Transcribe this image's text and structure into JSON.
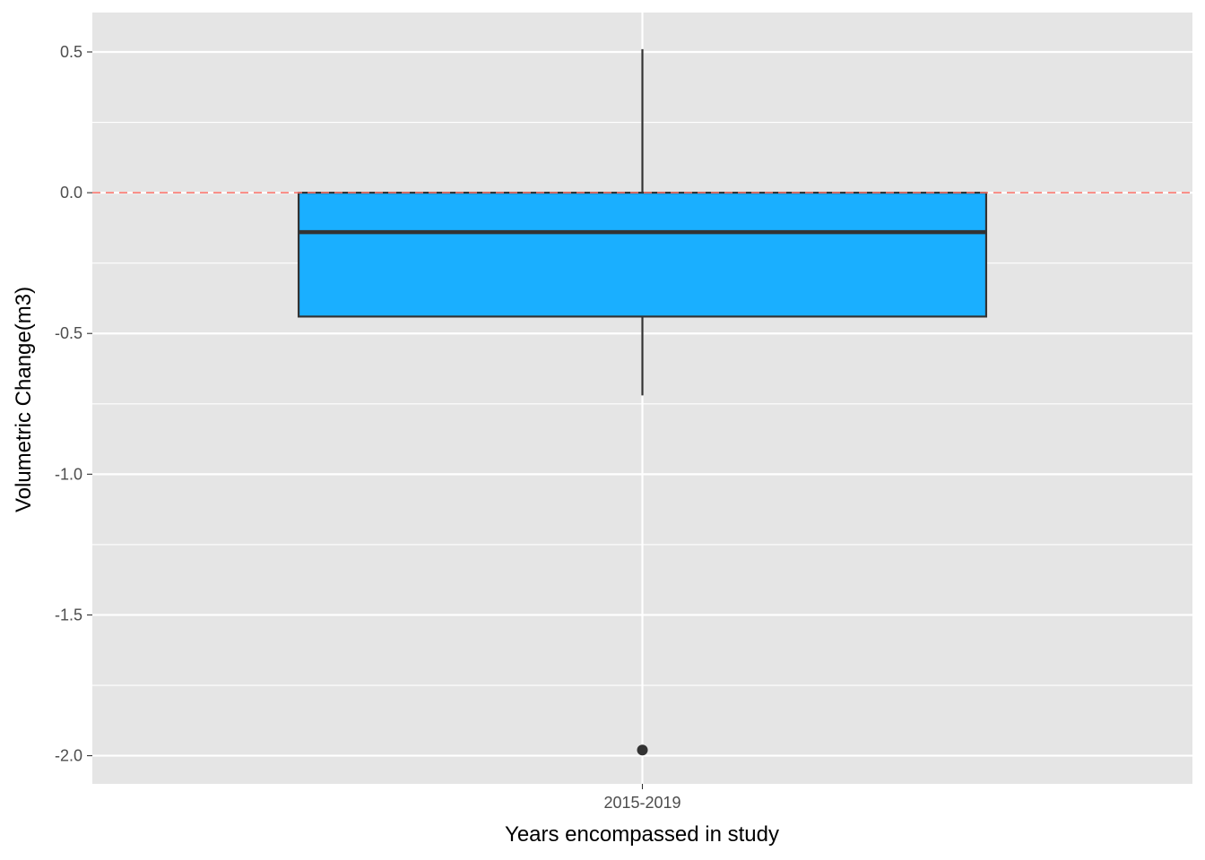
{
  "chart_data": {
    "type": "box",
    "xlabel": "Years encompassed in study",
    "ylabel": "Volumetric Change(m3)",
    "categories": [
      "2015-2019"
    ],
    "ylim": [
      -2.1,
      0.64
    ],
    "yticks": [
      0.5,
      0.0,
      -0.5,
      -1.0,
      -1.5,
      -2.0
    ],
    "ytick_labels": [
      "0.5",
      "0.0",
      "-0.5",
      "-1.0",
      "-1.5",
      "-2.0"
    ],
    "boxes": [
      {
        "category": "2015-2019",
        "whisker_high": 0.51,
        "q3": 0.0,
        "median": -0.14,
        "q1": -0.44,
        "whisker_low": -0.72,
        "outliers": [
          -1.98
        ]
      }
    ],
    "reference_line": {
      "y": 0.0,
      "style": "dashed",
      "color": "#f8766d"
    },
    "grid": true,
    "legend": "none",
    "colors": {
      "panel": "#e5e5e5",
      "grid_major": "#ffffff",
      "box_fill": "#1aafff",
      "box_line": "#333333"
    }
  }
}
